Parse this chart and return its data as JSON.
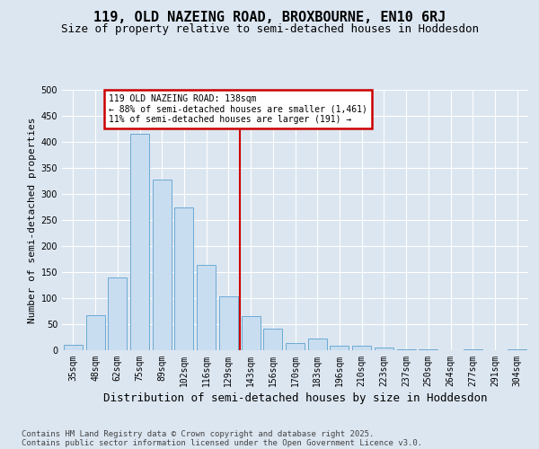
{
  "title1": "119, OLD NAZEING ROAD, BROXBOURNE, EN10 6RJ",
  "title2": "Size of property relative to semi-detached houses in Hoddesdon",
  "xlabel": "Distribution of semi-detached houses by size in Hoddesdon",
  "ylabel": "Number of semi-detached properties",
  "categories": [
    "35sqm",
    "48sqm",
    "62sqm",
    "75sqm",
    "89sqm",
    "102sqm",
    "116sqm",
    "129sqm",
    "143sqm",
    "156sqm",
    "170sqm",
    "183sqm",
    "196sqm",
    "210sqm",
    "223sqm",
    "237sqm",
    "250sqm",
    "264sqm",
    "277sqm",
    "291sqm",
    "304sqm"
  ],
  "values": [
    10,
    67,
    140,
    415,
    328,
    275,
    163,
    104,
    65,
    42,
    13,
    22,
    9,
    8,
    5,
    2,
    1,
    0,
    1,
    0,
    1
  ],
  "bar_color": "#c9ddf0",
  "bar_edge_color": "#6aaad4",
  "property_bin_index": 8,
  "annotation_title": "119 OLD NAZEING ROAD: 138sqm",
  "annotation_line1": "← 88% of semi-detached houses are smaller (1,461)",
  "annotation_line2": "11% of semi-detached houses are larger (191) →",
  "vline_color": "#cc0000",
  "annotation_box_color": "#cc0000",
  "ylim": [
    0,
    500
  ],
  "yticks": [
    0,
    50,
    100,
    150,
    200,
    250,
    300,
    350,
    400,
    450,
    500
  ],
  "bg_color": "#dce6f1",
  "plot_bg_color": "#dce6f1",
  "footer1": "Contains HM Land Registry data © Crown copyright and database right 2025.",
  "footer2": "Contains public sector information licensed under the Open Government Licence v3.0.",
  "grid_color": "#ffffff",
  "title1_fontsize": 11,
  "title2_fontsize": 9,
  "ylabel_fontsize": 8,
  "xlabel_fontsize": 9,
  "tick_fontsize": 7,
  "footer_fontsize": 6.5
}
